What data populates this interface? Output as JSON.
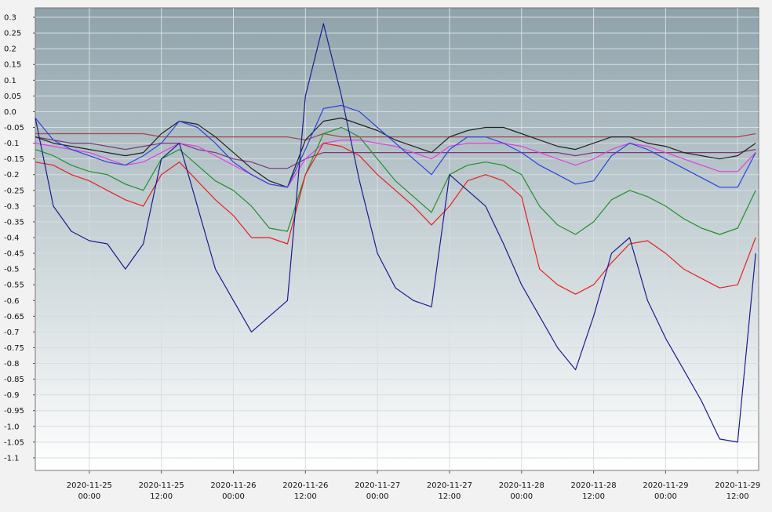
{
  "chart_data": {
    "type": "line",
    "x": [
      "2020-11-24 15:00",
      "2020-11-24 18:00",
      "2020-11-24 21:00",
      "2020-11-25 00:00",
      "2020-11-25 03:00",
      "2020-11-25 06:00",
      "2020-11-25 09:00",
      "2020-11-25 12:00",
      "2020-11-25 15:00",
      "2020-11-25 18:00",
      "2020-11-25 21:00",
      "2020-11-26 00:00",
      "2020-11-26 03:00",
      "2020-11-26 06:00",
      "2020-11-26 09:00",
      "2020-11-26 12:00",
      "2020-11-26 15:00",
      "2020-11-26 18:00",
      "2020-11-26 21:00",
      "2020-11-27 00:00",
      "2020-11-27 03:00",
      "2020-11-27 06:00",
      "2020-11-27 09:00",
      "2020-11-27 12:00",
      "2020-11-27 15:00",
      "2020-11-27 18:00",
      "2020-11-27 21:00",
      "2020-11-28 00:00",
      "2020-11-28 03:00",
      "2020-11-28 06:00",
      "2020-11-28 09:00",
      "2020-11-28 12:00",
      "2020-11-28 15:00",
      "2020-11-28 18:00",
      "2020-11-28 21:00",
      "2020-11-29 00:00",
      "2020-11-29 03:00",
      "2020-11-29 06:00",
      "2020-11-29 09:00",
      "2020-11-29 12:00",
      "2020-11-29 15:00"
    ],
    "xlim": [
      "2020-11-24 15:00",
      "2020-11-29 15:30"
    ],
    "xticks": [
      {
        "value": "2020-11-25 00:00",
        "label": [
          "2020-11-25",
          "00:00"
        ]
      },
      {
        "value": "2020-11-25 12:00",
        "label": [
          "2020-11-25",
          "12:00"
        ]
      },
      {
        "value": "2020-11-26 00:00",
        "label": [
          "2020-11-26",
          "00:00"
        ]
      },
      {
        "value": "2020-11-26 12:00",
        "label": [
          "2020-11-26",
          "12:00"
        ]
      },
      {
        "value": "2020-11-27 00:00",
        "label": [
          "2020-11-27",
          "00:00"
        ]
      },
      {
        "value": "2020-11-27 12:00",
        "label": [
          "2020-11-27",
          "12:00"
        ]
      },
      {
        "value": "2020-11-28 00:00",
        "label": [
          "2020-11-28",
          "00:00"
        ]
      },
      {
        "value": "2020-11-28 12:00",
        "label": [
          "2020-11-28",
          "12:00"
        ]
      },
      {
        "value": "2020-11-29 00:00",
        "label": [
          "2020-11-29",
          "00:00"
        ]
      },
      {
        "value": "2020-11-29 12:00",
        "label": [
          "2020-11-29",
          "12:00"
        ]
      }
    ],
    "ylim": [
      -1.14,
      0.33
    ],
    "yticks": [
      0.3,
      0.25,
      0.2,
      0.15,
      0.1,
      0.05,
      {
        "value": 0,
        "label": "0.0"
      },
      -0.05,
      -0.1,
      -0.15,
      -0.2,
      -0.25,
      -0.3,
      -0.35,
      -0.4,
      -0.45,
      -0.5,
      -0.55,
      -0.6,
      -0.65,
      -0.7,
      -0.75,
      -0.8,
      -0.85,
      -0.9,
      -0.95,
      {
        "value": -1,
        "label": "-1.0"
      },
      -1.05,
      -1.1
    ],
    "grid": true,
    "series": [
      {
        "color": "#a04848",
        "values": [
          -0.07,
          -0.07,
          -0.07,
          -0.07,
          -0.07,
          -0.07,
          -0.07,
          -0.08,
          -0.08,
          -0.08,
          -0.08,
          -0.08,
          -0.08,
          -0.08,
          -0.08,
          -0.09,
          -0.07,
          -0.08,
          -0.08,
          -0.08,
          -0.08,
          -0.08,
          -0.08,
          -0.08,
          -0.08,
          -0.08,
          -0.08,
          -0.08,
          -0.08,
          -0.08,
          -0.08,
          -0.08,
          -0.08,
          -0.08,
          -0.08,
          -0.08,
          -0.08,
          -0.08,
          -0.08,
          -0.08,
          -0.07
        ]
      },
      {
        "color": "#7a3a7a",
        "values": [
          -0.08,
          -0.09,
          -0.1,
          -0.1,
          -0.11,
          -0.12,
          -0.11,
          -0.1,
          -0.1,
          -0.12,
          -0.13,
          -0.15,
          -0.16,
          -0.18,
          -0.18,
          -0.15,
          -0.13,
          -0.13,
          -0.13,
          -0.13,
          -0.13,
          -0.13,
          -0.13,
          -0.13,
          -0.13,
          -0.13,
          -0.13,
          -0.13,
          -0.13,
          -0.13,
          -0.14,
          -0.13,
          -0.13,
          -0.13,
          -0.13,
          -0.13,
          -0.13,
          -0.13,
          -0.13,
          -0.13,
          -0.12
        ]
      },
      {
        "color": "#222222",
        "values": [
          -0.08,
          -0.1,
          -0.11,
          -0.12,
          -0.13,
          -0.14,
          -0.13,
          -0.07,
          -0.03,
          -0.04,
          -0.08,
          -0.13,
          -0.18,
          -0.22,
          -0.24,
          -0.09,
          -0.03,
          -0.02,
          -0.04,
          -0.06,
          -0.09,
          -0.11,
          -0.13,
          -0.08,
          -0.06,
          -0.05,
          -0.05,
          -0.07,
          -0.09,
          -0.11,
          -0.12,
          -0.1,
          -0.08,
          -0.08,
          -0.1,
          -0.11,
          -0.13,
          -0.14,
          -0.15,
          -0.14,
          -0.1
        ]
      },
      {
        "color": "#e040e0",
        "values": [
          -0.1,
          -0.11,
          -0.12,
          -0.13,
          -0.15,
          -0.17,
          -0.16,
          -0.13,
          -0.1,
          -0.11,
          -0.14,
          -0.17,
          -0.2,
          -0.23,
          -0.24,
          -0.15,
          -0.1,
          -0.09,
          -0.09,
          -0.1,
          -0.11,
          -0.13,
          -0.15,
          -0.11,
          -0.1,
          -0.1,
          -0.1,
          -0.11,
          -0.13,
          -0.15,
          -0.17,
          -0.15,
          -0.12,
          -0.1,
          -0.11,
          -0.13,
          -0.15,
          -0.17,
          -0.19,
          -0.19,
          -0.13
        ]
      },
      {
        "color": "#2a44e0",
        "values": [
          -0.02,
          -0.09,
          -0.12,
          -0.14,
          -0.16,
          -0.17,
          -0.14,
          -0.1,
          -0.03,
          -0.05,
          -0.1,
          -0.16,
          -0.2,
          -0.23,
          -0.24,
          -0.12,
          0.01,
          0.02,
          0,
          -0.05,
          -0.1,
          -0.15,
          -0.2,
          -0.12,
          -0.08,
          -0.08,
          -0.1,
          -0.13,
          -0.17,
          -0.2,
          -0.23,
          -0.22,
          -0.14,
          -0.1,
          -0.12,
          -0.15,
          -0.18,
          -0.21,
          -0.24,
          -0.24,
          -0.13
        ]
      },
      {
        "color": "#22902a",
        "values": [
          -0.12,
          -0.14,
          -0.17,
          -0.19,
          -0.2,
          -0.23,
          -0.25,
          -0.15,
          -0.12,
          -0.17,
          -0.22,
          -0.25,
          -0.3,
          -0.37,
          -0.38,
          -0.2,
          -0.07,
          -0.05,
          -0.08,
          -0.15,
          -0.22,
          -0.27,
          -0.32,
          -0.2,
          -0.17,
          -0.16,
          -0.17,
          -0.2,
          -0.3,
          -0.36,
          -0.39,
          -0.35,
          -0.28,
          -0.25,
          -0.27,
          -0.3,
          -0.34,
          -0.37,
          -0.39,
          -0.37,
          -0.25
        ]
      },
      {
        "color": "#e82020",
        "values": [
          -0.16,
          -0.17,
          -0.2,
          -0.22,
          -0.25,
          -0.28,
          -0.3,
          -0.2,
          -0.16,
          -0.22,
          -0.28,
          -0.33,
          -0.4,
          -0.4,
          -0.42,
          -0.2,
          -0.1,
          -0.11,
          -0.14,
          -0.2,
          -0.25,
          -0.3,
          -0.36,
          -0.3,
          -0.22,
          -0.2,
          -0.22,
          -0.27,
          -0.5,
          -0.55,
          -0.58,
          -0.55,
          -0.48,
          -0.42,
          -0.41,
          -0.45,
          -0.5,
          -0.53,
          -0.56,
          -0.55,
          -0.4
        ]
      },
      {
        "color": "#1c1c90",
        "values": [
          -0.02,
          -0.3,
          -0.38,
          -0.41,
          -0.42,
          -0.5,
          -0.42,
          -0.15,
          -0.1,
          -0.3,
          -0.5,
          -0.6,
          -0.7,
          -0.65,
          -0.6,
          0.05,
          0.28,
          0.05,
          -0.22,
          -0.45,
          -0.56,
          -0.6,
          -0.62,
          -0.2,
          -0.25,
          -0.3,
          -0.42,
          -0.55,
          -0.65,
          -0.75,
          -0.82,
          -0.65,
          -0.45,
          -0.4,
          -0.6,
          -0.72,
          -0.82,
          -0.92,
          -1.04,
          -1.05,
          -0.45
        ]
      }
    ]
  }
}
